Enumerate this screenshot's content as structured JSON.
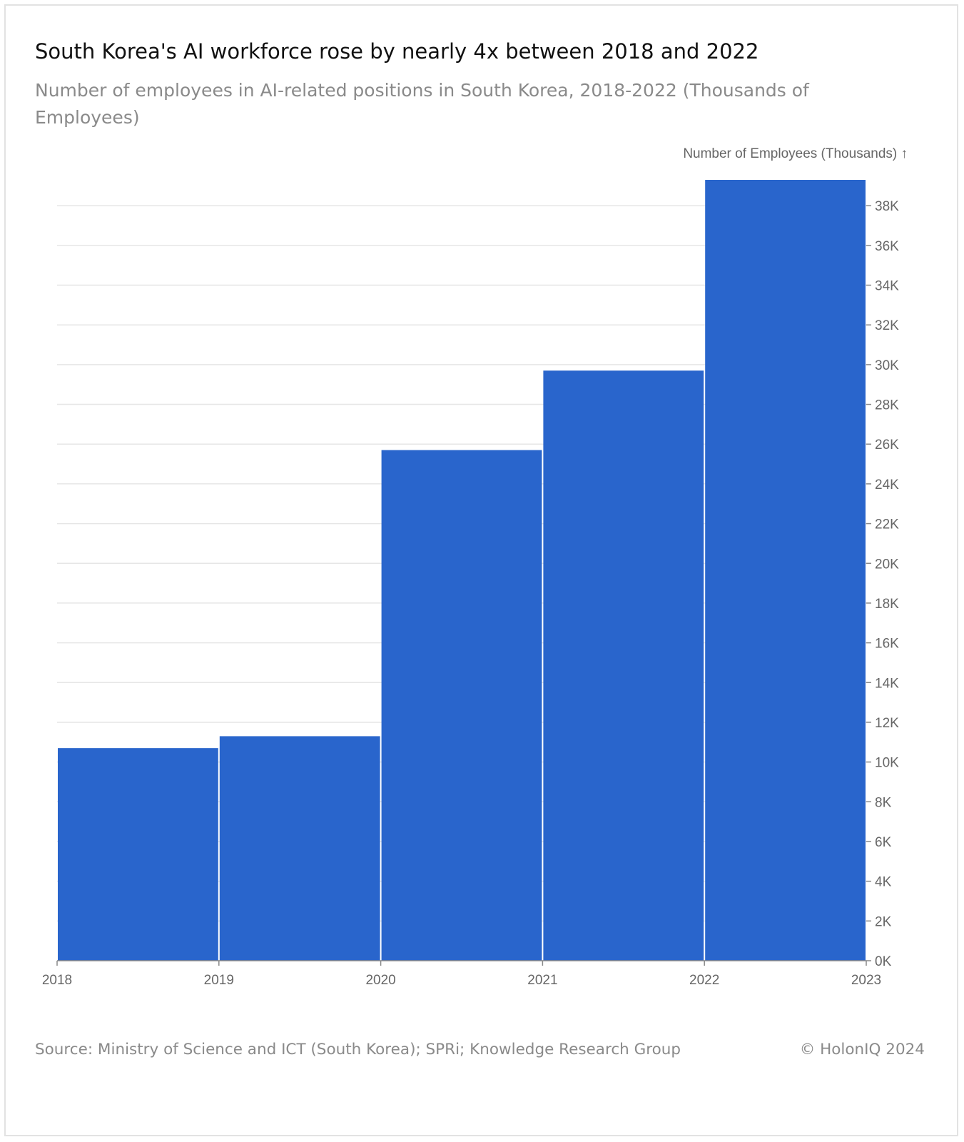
{
  "header": {
    "title": "South Korea's AI workforce rose by nearly 4x between 2018 and 2022",
    "subtitle": "Number of employees in AI-related positions in South Korea, 2018-2022 (Thousands of Employees)"
  },
  "footer": {
    "source": "Source: Ministry of Science and ICT (South Korea); SPRi; Knowledge Research Group",
    "copyright": "© HolonIQ 2024"
  },
  "colors": {
    "bar": "#2965cc",
    "grid": "#e6e6e6",
    "axis": "#888888"
  },
  "chart_data": {
    "type": "bar",
    "title": "South Korea's AI workforce rose by nearly 4x between 2018 and 2022",
    "subtitle": "Number of employees in AI-related positions in South Korea, 2018-2022 (Thousands of Employees)",
    "xlabel": "",
    "ylabel": "Number of Employees (Thousands) ↑",
    "y_axis_position": "right",
    "grid": true,
    "x_ticks": [
      "2018",
      "2019",
      "2020",
      "2021",
      "2022",
      "2023"
    ],
    "bins": [
      {
        "start": 2018,
        "end": 2019,
        "value": 10.7
      },
      {
        "start": 2019,
        "end": 2020,
        "value": 11.3
      },
      {
        "start": 2020,
        "end": 2021,
        "value": 25.7
      },
      {
        "start": 2021,
        "end": 2022,
        "value": 29.7
      },
      {
        "start": 2022,
        "end": 2023,
        "value": 39.3
      }
    ],
    "ylim": [
      0,
      39.3
    ],
    "y_ticks": [
      "0K",
      "2K",
      "4K",
      "6K",
      "8K",
      "10K",
      "12K",
      "14K",
      "16K",
      "18K",
      "20K",
      "22K",
      "24K",
      "26K",
      "28K",
      "30K",
      "32K",
      "34K",
      "36K",
      "38K"
    ]
  }
}
